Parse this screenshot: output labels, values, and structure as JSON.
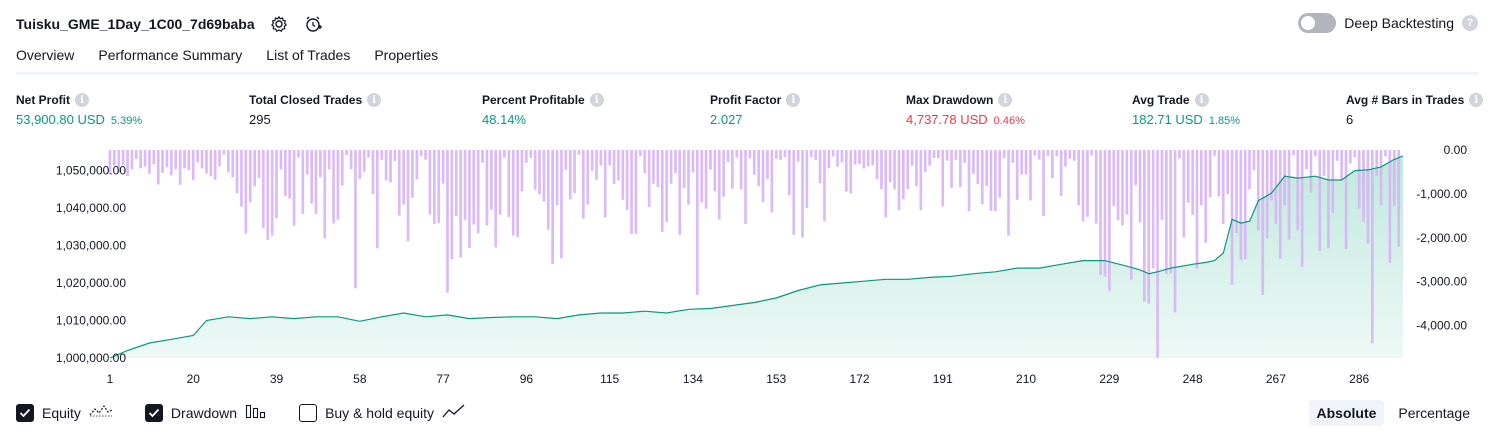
{
  "header": {
    "strategy_name": "Tuisku_GME_1Day_1C00_7d69baba"
  },
  "deep_backtesting": {
    "label": "Deep Backtesting",
    "enabled": false,
    "help": "?"
  },
  "tabs": [
    {
      "label": "Overview",
      "active": true
    },
    {
      "label": "Performance Summary",
      "active": false
    },
    {
      "label": "List of Trades",
      "active": false
    },
    {
      "label": "Properties",
      "active": false
    }
  ],
  "metrics": {
    "net_profit": {
      "label": "Net Profit",
      "value": "53,900.80 USD",
      "pct": "5.39%"
    },
    "total_closed_trades": {
      "label": "Total Closed Trades",
      "value": "295"
    },
    "percent_profitable": {
      "label": "Percent Profitable",
      "value": "48.14%"
    },
    "profit_factor": {
      "label": "Profit Factor",
      "value": "2.027"
    },
    "max_drawdown": {
      "label": "Max Drawdown",
      "value": "4,737.78 USD",
      "pct": "0.46%"
    },
    "avg_trade": {
      "label": "Avg Trade",
      "value": "182.71 USD",
      "pct": "1.85%"
    },
    "avg_bars": {
      "label": "Avg # Bars in Trades",
      "value": "6"
    }
  },
  "info_glyph": "i",
  "chart_data": {
    "type": "area",
    "left_axis": {
      "ticks": [
        "1,050,000.00",
        "1,040,000.00",
        "1,030,000.00",
        "1,020,000.00",
        "1,010,000.00",
        "1,000,000.00"
      ]
    },
    "right_axis": {
      "ticks": [
        "0.00",
        "-1,000.00",
        "-2,000.00",
        "-3,000.00",
        "-4,000.00"
      ]
    },
    "x_ticks": [
      "1",
      "20",
      "39",
      "58",
      "77",
      "96",
      "115",
      "134",
      "153",
      "172",
      "191",
      "210",
      "229",
      "248",
      "267",
      "286"
    ],
    "equity_series": {
      "x": [
        1,
        5,
        10,
        15,
        20,
        23,
        28,
        33,
        38,
        43,
        48,
        53,
        58,
        63,
        68,
        73,
        78,
        83,
        88,
        93,
        98,
        103,
        108,
        113,
        118,
        123,
        128,
        133,
        138,
        143,
        148,
        153,
        158,
        163,
        168,
        173,
        178,
        183,
        188,
        193,
        198,
        203,
        208,
        213,
        218,
        223,
        228,
        233,
        236,
        238,
        240,
        243,
        248,
        251,
        253,
        255,
        257,
        259,
        261,
        263,
        266,
        269,
        272,
        276,
        279,
        282,
        285,
        288,
        291,
        294,
        296
      ],
      "y": [
        1000000,
        1002000,
        1004000,
        1005000,
        1006000,
        1010000,
        1011000,
        1010500,
        1011000,
        1010500,
        1011000,
        1011000,
        1009800,
        1011000,
        1012000,
        1011000,
        1011500,
        1010500,
        1010800,
        1011000,
        1011000,
        1010500,
        1011500,
        1012000,
        1012000,
        1012500,
        1012000,
        1013000,
        1013200,
        1014000,
        1014800,
        1016000,
        1018000,
        1019500,
        1020000,
        1020500,
        1021000,
        1021000,
        1021500,
        1021800,
        1022500,
        1023000,
        1024000,
        1024000,
        1025000,
        1026000,
        1026000,
        1024500,
        1023500,
        1022500,
        1023000,
        1024000,
        1025000,
        1025500,
        1026000,
        1028000,
        1037000,
        1036000,
        1036500,
        1042000,
        1044000,
        1048500,
        1048000,
        1048500,
        1047500,
        1047500,
        1050000,
        1050200,
        1051000,
        1053000,
        1053900
      ]
    },
    "drawdown_series": {
      "range": [
        -4737.78,
        0
      ]
    },
    "colors": {
      "equity_line": "#089981",
      "equity_fill": "#d9f2ec",
      "drawdown_bar": "#d7b4f6"
    }
  },
  "legend": [
    {
      "label": "Equity",
      "checked": true,
      "icon": "equity-line-icon"
    },
    {
      "label": "Drawdown",
      "checked": true,
      "icon": "drawdown-bars-icon"
    },
    {
      "label": "Buy & hold equity",
      "checked": false,
      "icon": "buy-hold-line-icon"
    }
  ],
  "modes": [
    {
      "label": "Absolute",
      "active": true
    },
    {
      "label": "Percentage",
      "active": false
    }
  ]
}
